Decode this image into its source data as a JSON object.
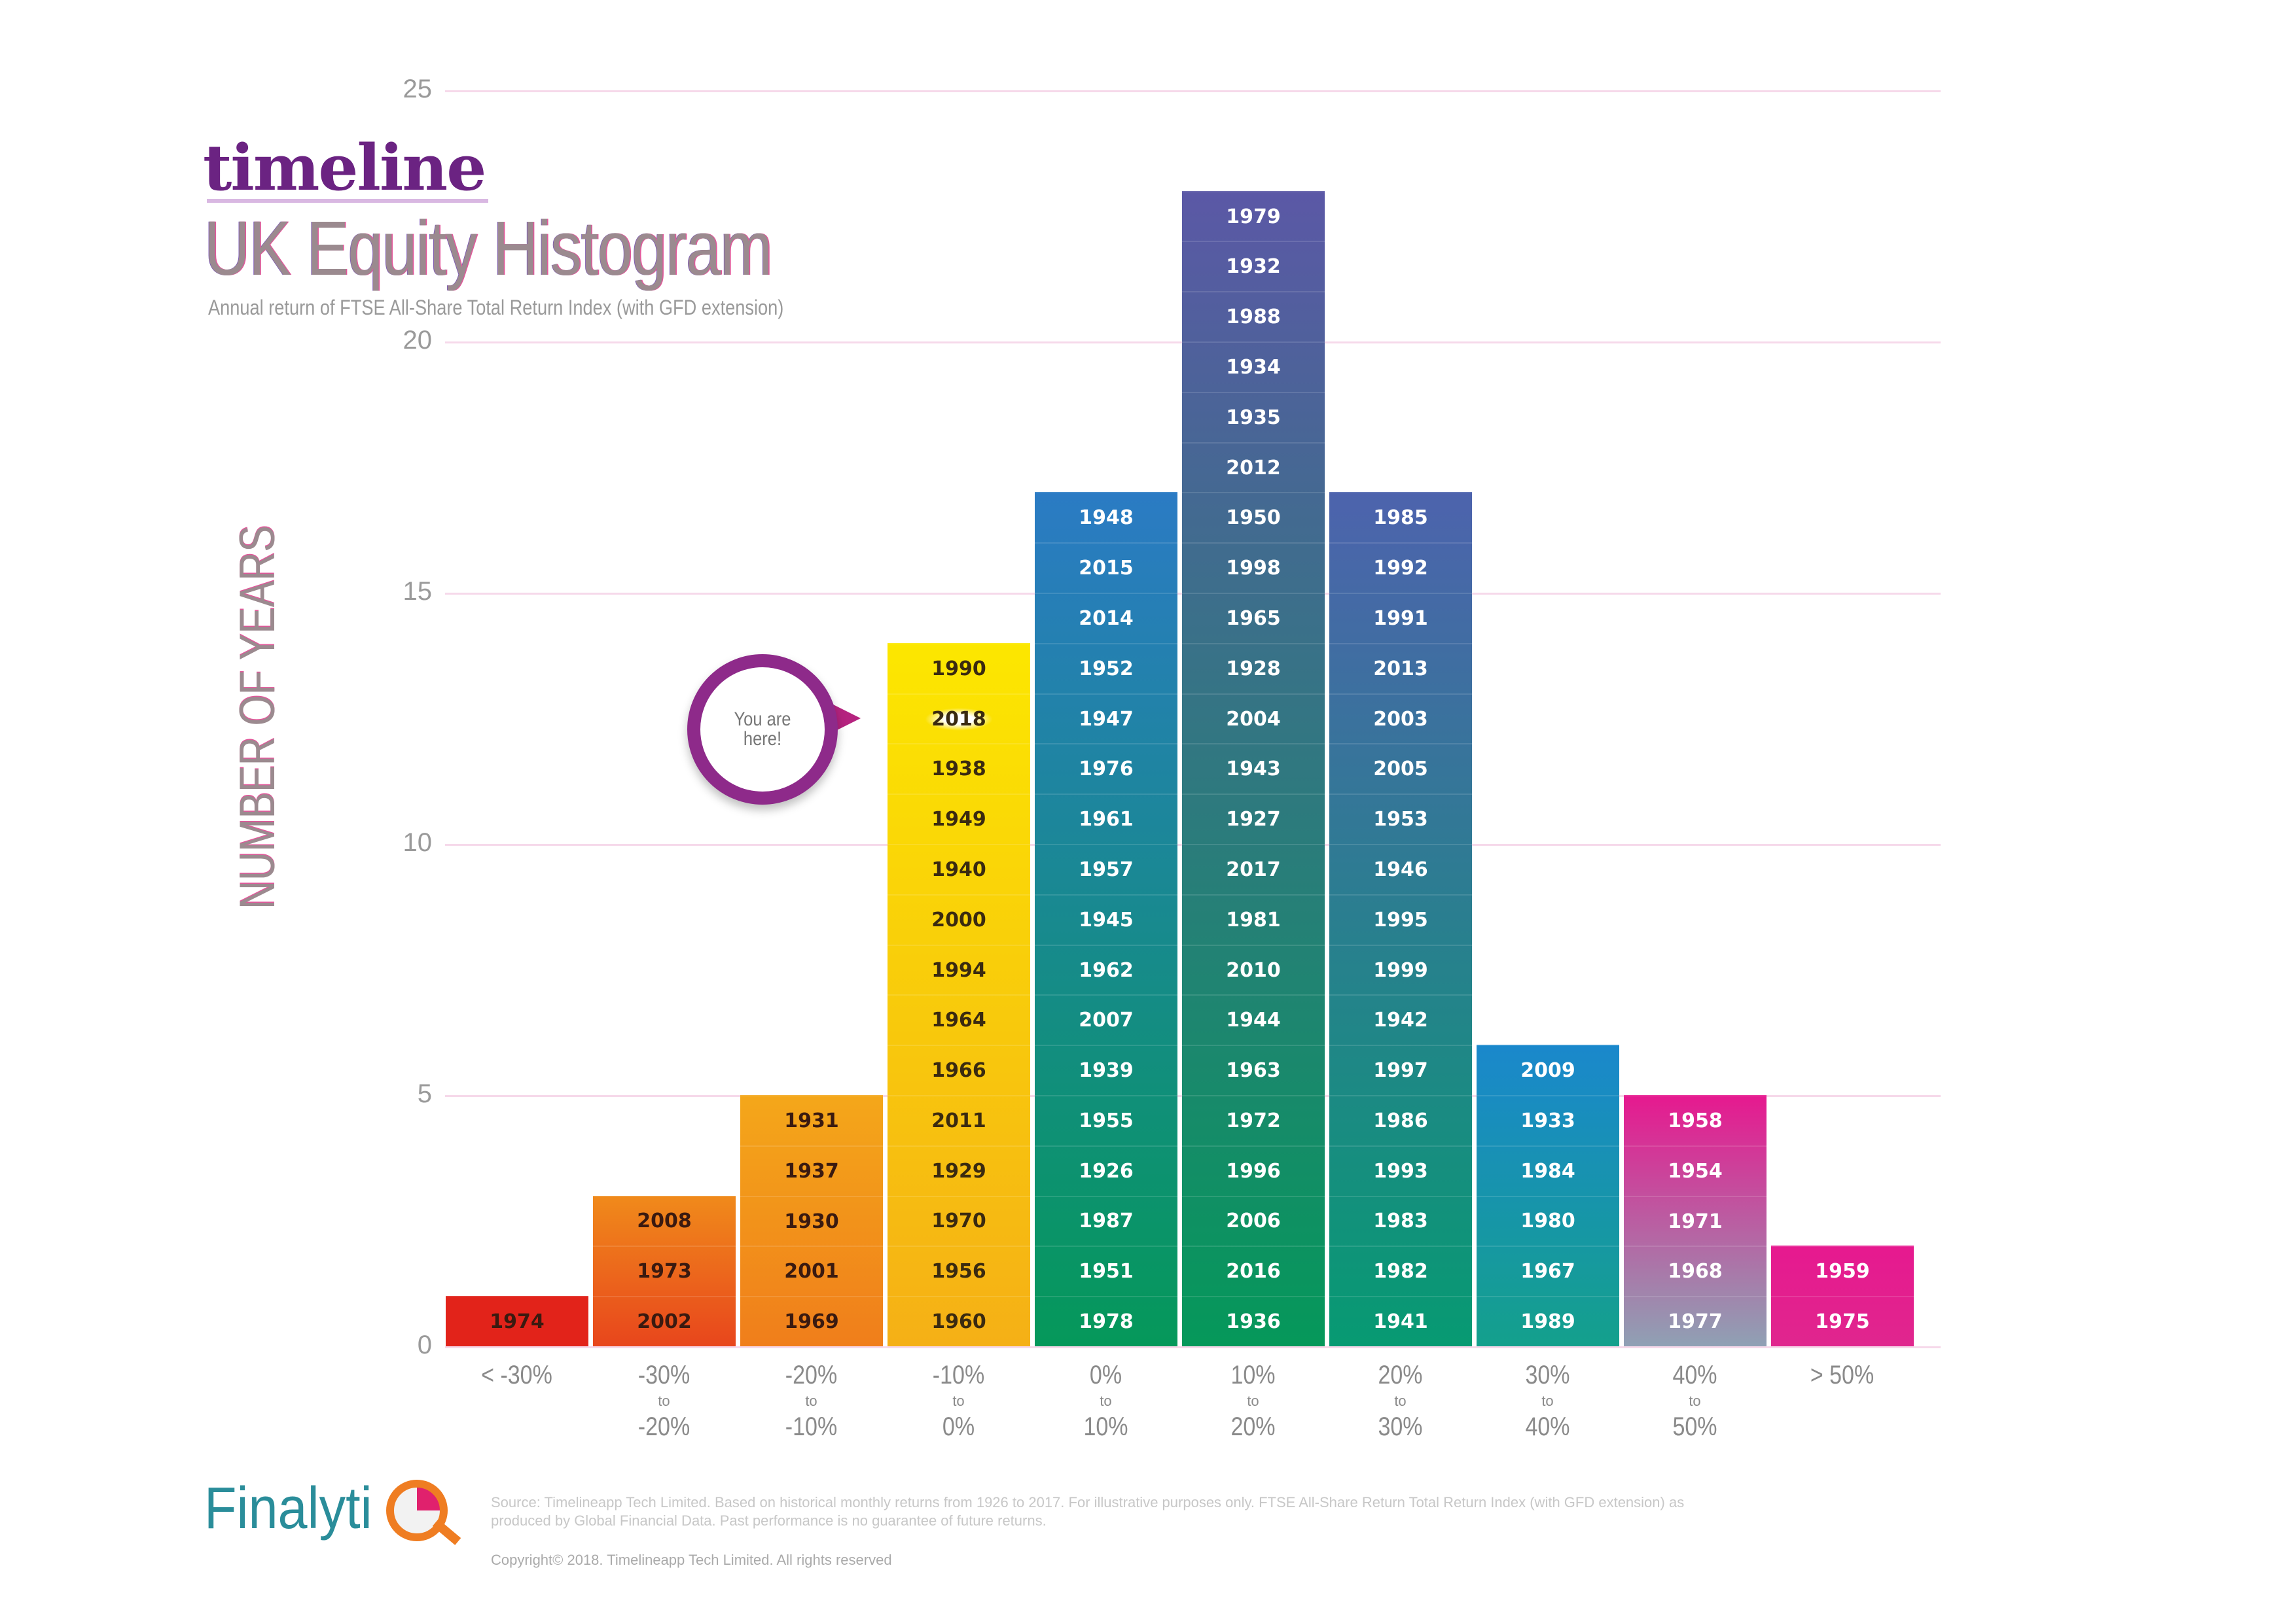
{
  "header": {
    "brand": "timeline",
    "title": "UK Equity Histogram",
    "subtitle": "Annual return of FTSE All-Share Total Return Index (with GFD extension)"
  },
  "callout": {
    "text": "You are here!",
    "highlight_year": "2018"
  },
  "footer": {
    "logo": "Finalytiq",
    "logo_text": "Finalyti",
    "source": "Source: Timelineapp Tech Limited. Based on historical monthly returns from 1926 to 2017. For illustrative purposes only. FTSE All-Share Return Total Return Index (with GFD extension) as produced by Global Financial Data. Past performance is no guarantee of future returns.",
    "copyright": "Copyright© 2018. Timelineapp Tech Limited. All rights reserved"
  },
  "chart_data": {
    "type": "bar",
    "title": "UK Equity Histogram",
    "xlabel": "",
    "ylabel": "NUMBER OF YEARS",
    "ylim": [
      0,
      25
    ],
    "yticks": [
      "0",
      "5",
      "10",
      "15",
      "20",
      "25"
    ],
    "grid": true,
    "categories": [
      {
        "top": "< -30%",
        "to": "",
        "bottom": ""
      },
      {
        "top": "-30%",
        "to": "to",
        "bottom": "-20%"
      },
      {
        "top": "-20%",
        "to": "to",
        "bottom": "-10%"
      },
      {
        "top": "-10%",
        "to": "to",
        "bottom": "0%"
      },
      {
        "top": "0%",
        "to": "to",
        "bottom": "10%"
      },
      {
        "top": "10%",
        "to": "to",
        "bottom": "20%"
      },
      {
        "top": "20%",
        "to": "to",
        "bottom": "30%"
      },
      {
        "top": "30%",
        "to": "to",
        "bottom": "40%"
      },
      {
        "top": "40%",
        "to": "to",
        "bottom": "50%"
      },
      {
        "top": "> 50%",
        "to": "",
        "bottom": ""
      }
    ],
    "values": [
      1,
      3,
      5,
      14,
      17,
      23,
      17,
      6,
      5,
      2
    ],
    "years_bottom_to_top": [
      [
        "1974"
      ],
      [
        "2002",
        "1973",
        "2008"
      ],
      [
        "1969",
        "2001",
        "1930",
        "1937",
        "1931"
      ],
      [
        "1960",
        "1956",
        "1970",
        "1929",
        "2011",
        "1966",
        "1964",
        "1994",
        "2000",
        "1940",
        "1949",
        "1938",
        "2018",
        "1990"
      ],
      [
        "1978",
        "1951",
        "1987",
        "1926",
        "1955",
        "1939",
        "2007",
        "1962",
        "1945",
        "1957",
        "1961",
        "1976",
        "1947",
        "1952",
        "2014",
        "2015",
        "1948"
      ],
      [
        "1936",
        "2016",
        "2006",
        "1996",
        "1972",
        "1963",
        "1944",
        "2010",
        "1981",
        "2017",
        "1927",
        "1943",
        "2004",
        "1928",
        "1965",
        "1998",
        "1950",
        "2012",
        "1935",
        "1934",
        "1988",
        "1932",
        "1979"
      ],
      [
        "1941",
        "1982",
        "1983",
        "1993",
        "1986",
        "1997",
        "1942",
        "1999",
        "1995",
        "1946",
        "1953",
        "2005",
        "2003",
        "2013",
        "1991",
        "1992",
        "1985"
      ],
      [
        "1989",
        "1967",
        "1980",
        "1984",
        "1933",
        "2009"
      ],
      [
        "1977",
        "1968",
        "1971",
        "1954",
        "1958"
      ],
      [
        "1975",
        "1959"
      ]
    ],
    "colors": [
      [
        "#e2231a",
        "#e2231a"
      ],
      [
        "#e8461c",
        "#f08a1b"
      ],
      [
        "#f07e1b",
        "#f4a71a"
      ],
      [
        "#f5b016",
        "#fce700"
      ],
      [
        "#05985a",
        "#2b7bc4"
      ],
      [
        "#05985a",
        "#5b58a6"
      ],
      [
        "#079a72",
        "#4d63ad"
      ],
      [
        "#14a08c",
        "#1a88cc"
      ],
      [
        "#8fa1b4",
        "#e6198f"
      ],
      [
        "#e0268e",
        "#e6198f"
      ]
    ],
    "text_colors": [
      "#3a1a10",
      "#3a1a10",
      "#3a1a10",
      "#3a2a10",
      "#ffffff",
      "#ffffff",
      "#ffffff",
      "#ffffff",
      "#ffffff",
      "#ffffff"
    ]
  }
}
